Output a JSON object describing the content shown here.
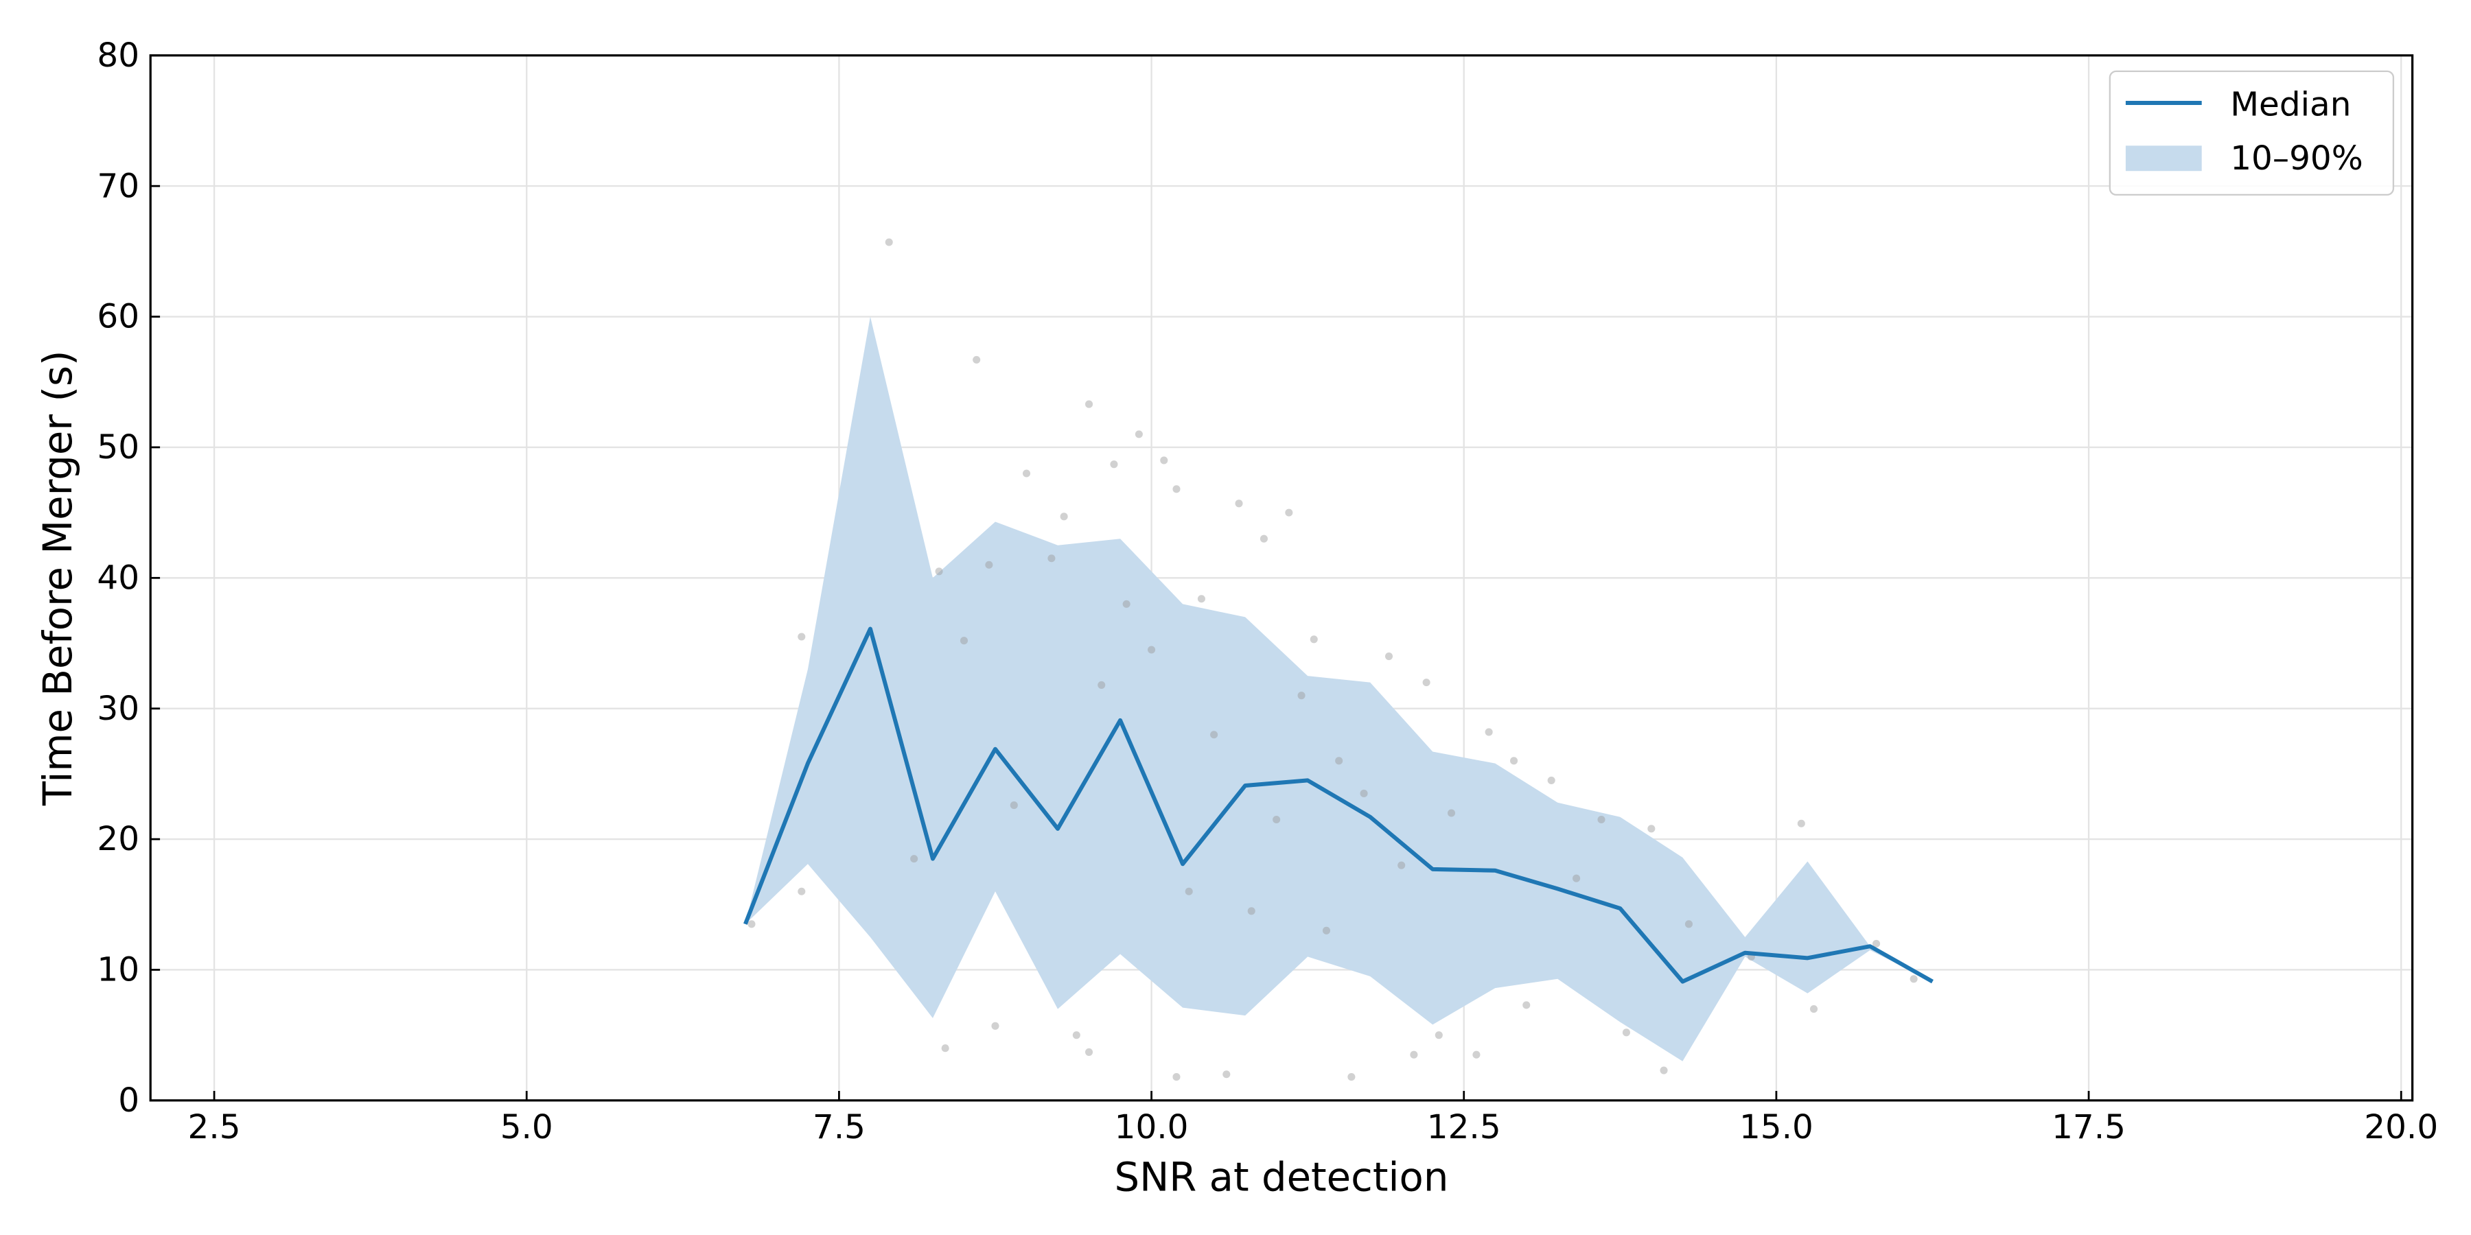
{
  "chart_data": {
    "type": "line",
    "xlabel": "SNR at detection",
    "ylabel": "Time Before Merger (s)",
    "xlim": [
      1.99,
      20.09
    ],
    "ylim": [
      0,
      80
    ],
    "xticks": [
      2.5,
      5.0,
      7.5,
      10.0,
      12.5,
      15.0,
      17.5,
      20.0
    ],
    "yticks": [
      0,
      10,
      20,
      30,
      40,
      50,
      60,
      70,
      80
    ],
    "grid": true,
    "legend": "upper right",
    "x": [
      6.75,
      7.25,
      7.75,
      8.25,
      8.75,
      9.25,
      9.75,
      10.25,
      10.75,
      11.25,
      11.75,
      12.25,
      12.75,
      13.25,
      13.75,
      14.25,
      14.75,
      15.25,
      15.75,
      16.25
    ],
    "series": [
      {
        "name": "Median",
        "color": "#1f77b4",
        "values": [
          13.5,
          25.8,
          36.1,
          18.5,
          26.9,
          20.8,
          29.1,
          18.1,
          24.1,
          24.5,
          21.7,
          17.7,
          17.6,
          16.2,
          14.7,
          9.1,
          11.3,
          10.9,
          11.8,
          9.1
        ]
      }
    ],
    "band": {
      "name": "10–90%",
      "color": "#c6dbed",
      "upper": [
        13.5,
        33,
        60,
        40,
        44.3,
        42.5,
        43,
        38,
        37,
        32.5,
        32,
        26.7,
        25.8,
        22.8,
        21.7,
        18.6,
        12.5,
        18.3,
        11.8,
        9.1
      ],
      "lower": [
        13.5,
        18.1,
        12.5,
        6.3,
        16,
        7,
        11.2,
        7.1,
        6.5,
        11,
        9.5,
        5.8,
        8.6,
        9.3,
        6,
        3,
        11,
        8.2,
        11.5,
        9.1
      ]
    },
    "points": {
      "color": "#9a9a9a",
      "x": [
        6.8,
        7.2,
        7.2,
        7.9,
        8.1,
        8.3,
        8.35,
        8.5,
        8.6,
        8.7,
        8.75,
        8.9,
        9.0,
        9.2,
        9.3,
        9.4,
        9.5,
        9.5,
        9.6,
        9.7,
        9.8,
        9.9,
        10.0,
        10.1,
        10.2,
        10.2,
        10.3,
        10.4,
        10.5,
        10.6,
        10.7,
        10.8,
        10.9,
        11.0,
        11.1,
        11.2,
        11.3,
        11.4,
        11.5,
        11.6,
        11.7,
        11.9,
        12.0,
        12.1,
        12.2,
        12.3,
        12.4,
        12.6,
        12.7,
        12.9,
        13.0,
        13.2,
        13.4,
        13.6,
        13.8,
        14.0,
        14.1,
        14.3,
        14.8,
        15.2,
        15.3,
        15.8,
        16.1
      ],
      "y": [
        13.5,
        35.5,
        16,
        65.7,
        18.5,
        40.5,
        4,
        35.2,
        56.7,
        41,
        5.7,
        22.6,
        48,
        41.5,
        44.7,
        5,
        53.3,
        3.7,
        31.8,
        48.7,
        38,
        51,
        34.5,
        49,
        46.8,
        1.8,
        16,
        38.4,
        28,
        2,
        45.7,
        14.5,
        43,
        21.5,
        45,
        31,
        35.3,
        13,
        26,
        1.8,
        23.5,
        34,
        18,
        3.5,
        32,
        5,
        22,
        3.5,
        28.2,
        26,
        7.3,
        24.5,
        17,
        21.5,
        5.2,
        20.8,
        2.3,
        13.5,
        11,
        21.2,
        7,
        12,
        9.3
      ]
    }
  }
}
